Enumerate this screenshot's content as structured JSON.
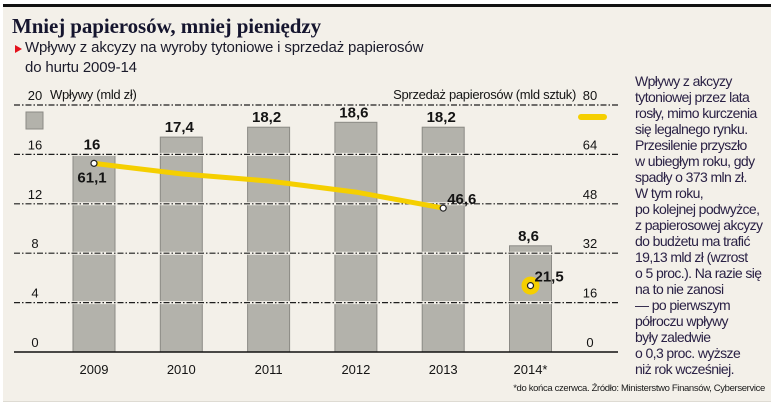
{
  "colors": {
    "panel_background": "#f3f0e9",
    "bar_fill": "#b3b2ab",
    "bar_stroke": "#8b8a85",
    "line": "#f5cf00",
    "bullet": "#e3121c",
    "grid": "#1e1e1e"
  },
  "chart_data": {
    "type": "bar",
    "title": "Mniej papierosów, mniej pieniędzy",
    "subtitle": [
      "Wpływy z akcyzy na wyroby tytoniowe i sprzedaż papierosów",
      "do hurtu 2009-14"
    ],
    "bullet_icon": "red-triangle-icon",
    "categories": [
      "2009",
      "2010",
      "2011",
      "2012",
      "2013",
      "2014*"
    ],
    "xlabel": "",
    "y_left": {
      "label": "Wpływy (mld zł)",
      "range": [
        0,
        20
      ],
      "tick_values": [
        0,
        4,
        8,
        12,
        16,
        20
      ],
      "tick_labels": [
        "0",
        "4",
        "8",
        "12",
        "16",
        "20"
      ]
    },
    "y_right": {
      "label": "Sprzedaż papierosów (mld sztuk)",
      "range": [
        0,
        80
      ],
      "tick_values": [
        0,
        16,
        32,
        48,
        64,
        80
      ],
      "tick_labels": [
        "0",
        "16",
        "32",
        "48",
        "64",
        "80"
      ]
    },
    "grid": true,
    "legend": {
      "placement": "top, next to axis titles",
      "items": [
        {
          "series": "Wpływy (mld zł)",
          "marker": "gray-square"
        },
        {
          "series": "Sprzedaż papierosów (mld sztuk)",
          "marker": "yellow-dash"
        }
      ]
    },
    "series": [
      {
        "name": "Wpływy (mld zł)",
        "type": "bar",
        "axis": "left",
        "values": [
          16,
          17.4,
          18.2,
          18.6,
          18.2,
          8.6
        ],
        "labels": [
          "16",
          "17,4",
          "18,2",
          "18,6",
          "18,2",
          "8,6"
        ]
      },
      {
        "name": "Sprzedaż papierosów (mld sztuk)",
        "type": "line",
        "axis": "right",
        "values": [
          61.1,
          57.7,
          55.4,
          51.8,
          46.6,
          21.5
        ],
        "labels": [
          "61,1",
          null,
          null,
          null,
          "46,6",
          "21,5"
        ],
        "connected": [
          "2009",
          "2010",
          "2011",
          "2012",
          "2013"
        ],
        "highlighted": [
          "2014*"
        ]
      }
    ]
  },
  "commentary": {
    "lines": [
      "Wpływy z akcyzy",
      "tytoniowej przez lata",
      "rosły, mimo kurczenia",
      "się legalnego rynku.",
      "Przesilenie przyszło",
      "w ubiegłym roku, gdy",
      "spadły o 373 mln zł.",
      "W tym roku,",
      "po kolejnej podwyżce,",
      "z papierosowej akcyzy",
      "do budżetu ma trafić",
      "19,13 mld zł (wzrost",
      "o 5 proc.). Na razie się",
      "na to nie zanosi",
      "— po pierwszym",
      "półroczu wpływy",
      "były zaledwie",
      "o 0,3 proc. wyższe",
      "niż rok wcześniej."
    ]
  },
  "footnote": "*do końca czerwca. Źródło: Ministerstwo Finansów, Cyberservice"
}
